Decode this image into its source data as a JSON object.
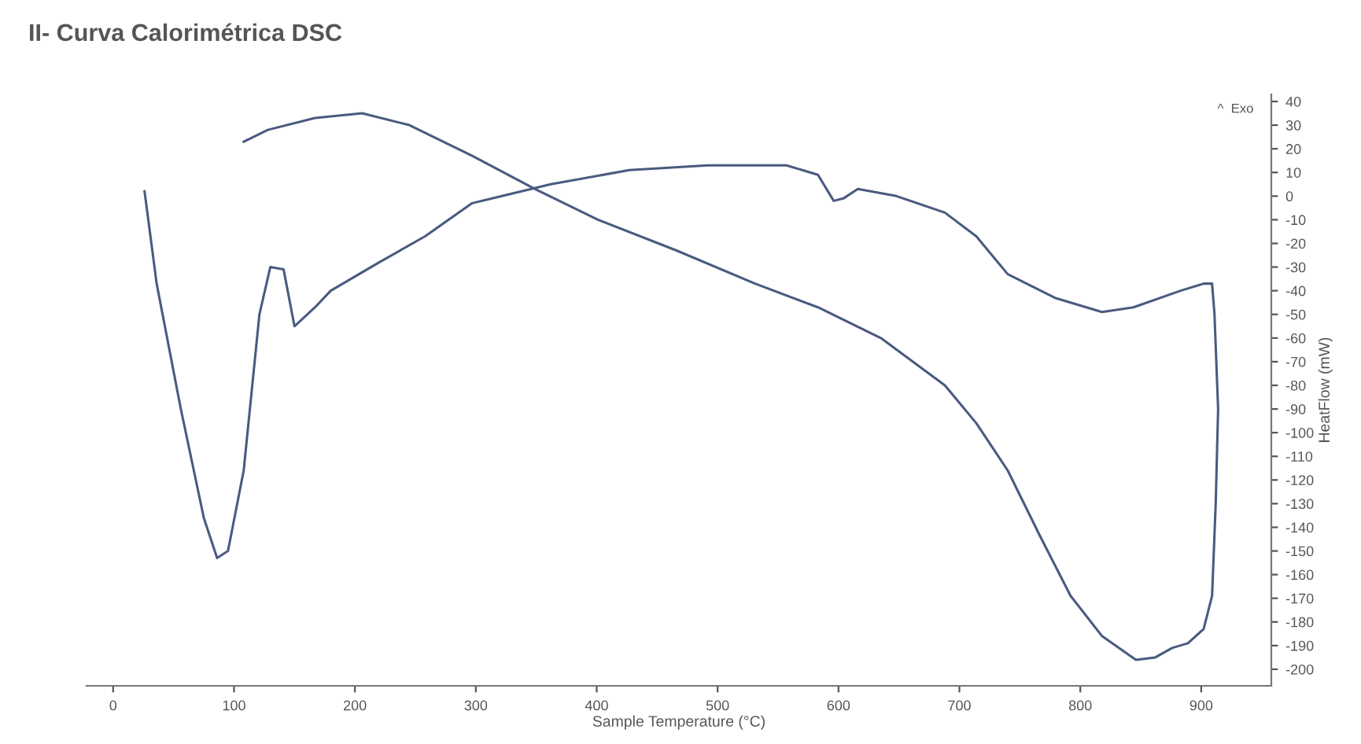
{
  "chart_data": {
    "type": "line",
    "title": "II- Curva Calorimétrica DSC",
    "xlabel": "Sample Temperature (°C)",
    "ylabel": "HeatFlow (mW)",
    "annotations": [
      "^  Exo"
    ],
    "series": [
      {
        "color": "#4a5a80",
        "x": [
          26,
          36,
          56,
          75,
          86,
          95,
          108,
          121,
          130,
          141,
          150,
          167,
          180,
          220,
          258,
          297,
          362,
          427,
          492,
          557,
          583,
          596,
          604,
          616,
          648,
          688,
          714,
          740,
          779,
          818,
          844,
          883,
          902,
          909,
          911,
          914,
          912,
          909,
          902,
          889,
          876,
          862,
          846,
          818,
          792,
          766,
          740,
          714,
          688,
          635,
          583,
          531,
          466,
          401,
          349,
          297,
          245,
          206,
          167,
          128,
          108
        ],
        "values": [
          2,
          -37,
          -90,
          -136,
          -153,
          -150,
          -116,
          -50,
          -30,
          -31,
          -55,
          -47,
          -40,
          -28,
          -17,
          -3,
          5,
          11,
          13,
          13,
          9,
          -2,
          -1,
          3,
          0,
          -7,
          -17,
          -33,
          -43,
          -49,
          -47,
          -40,
          -37,
          -37,
          -50,
          -90,
          -130,
          -169,
          -183,
          -189,
          -191,
          -195,
          -196,
          -186,
          -169,
          -143,
          -116,
          -96,
          -80,
          -60,
          -47,
          -37,
          -23,
          -10,
          3,
          17,
          30,
          35,
          33,
          28,
          23
        ]
      }
    ],
    "xlim": [
      -22,
      958
    ],
    "ylim": [
      -207,
      43
    ],
    "xticks": [
      0,
      100,
      200,
      300,
      400,
      500,
      600,
      700,
      800,
      900
    ],
    "yticks": [
      -200,
      -190,
      -180,
      -170,
      -160,
      -150,
      -140,
      -130,
      -120,
      -110,
      -100,
      -90,
      -80,
      -70,
      -60,
      -50,
      -40,
      -30,
      -20,
      -10,
      0,
      10,
      20,
      30,
      40
    ],
    "grid": false,
    "legend": false,
    "marker": "none",
    "line_style": "solid"
  }
}
